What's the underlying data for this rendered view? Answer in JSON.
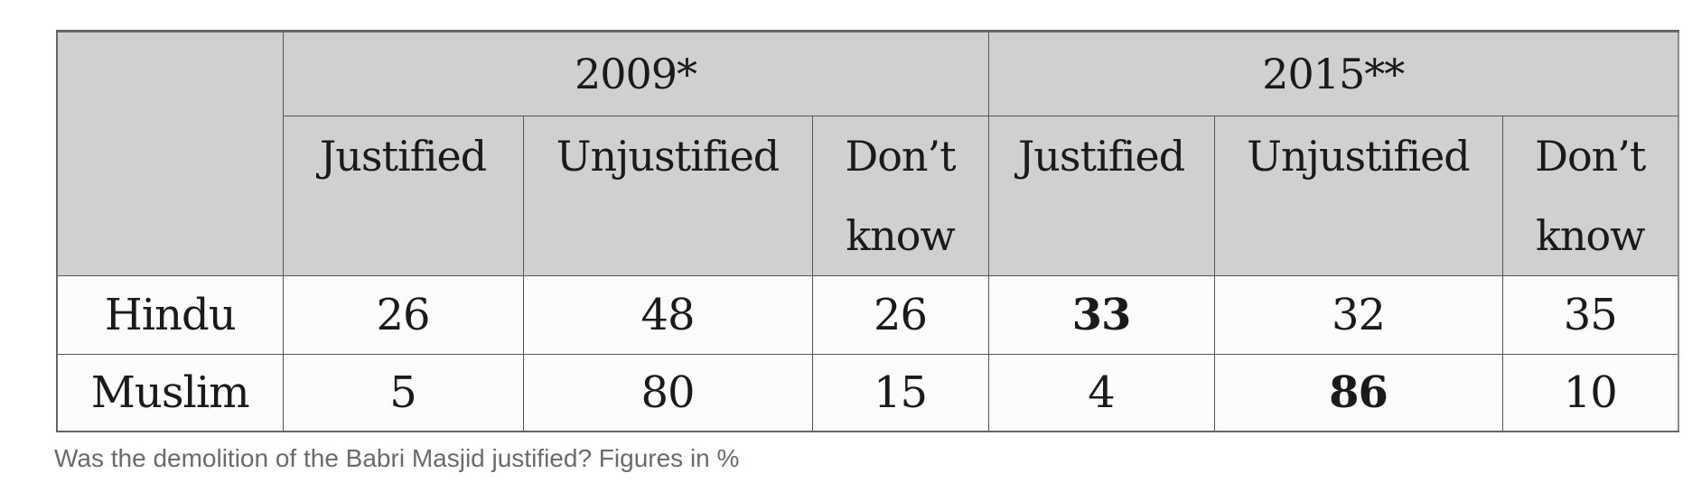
{
  "table": {
    "years": [
      "2009*",
      "2015**"
    ],
    "columns": [
      "Justified",
      "Unjustified",
      "Don’t know",
      "Justified",
      "Unjustified",
      "Don’t know"
    ],
    "rows": [
      {
        "label": "Hindu",
        "values": [
          "26",
          "48",
          "26",
          "33",
          "32",
          "35"
        ]
      },
      {
        "label": "Muslim",
        "values": [
          "5",
          "80",
          "15",
          "4",
          "86",
          "10"
        ]
      }
    ]
  },
  "caption": "Was the demolition of the Babri Masjid justified? Figures in %"
}
